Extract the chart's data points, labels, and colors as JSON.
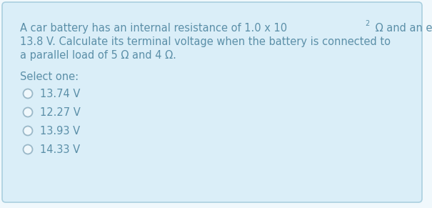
{
  "bg_color": "#f0f8fc",
  "card_color": "#daeef8",
  "card_border_color": "#aacfdf",
  "text_color": "#5b8fa8",
  "circle_edge_color": "#9ab8c8",
  "circle_face_color": "#f0f8fc",
  "question_line1_part1": "A car battery has an internal resistance of 1.0 x 10",
  "question_line1_super": "-2",
  "question_line1_part2": " Ω and an emf of",
  "question_line2": "13.8 V. Calculate its terminal voltage when the battery is connected to",
  "question_line3": "a parallel load of 5 Ω and 4 Ω.",
  "select_label": "Select one:",
  "options": [
    "13.74 V",
    "12.27 V",
    "13.93 V",
    "14.33 V"
  ],
  "font_size_question": 10.5,
  "font_size_options": 10.5,
  "figsize": [
    6.05,
    2.91
  ],
  "dpi": 100
}
